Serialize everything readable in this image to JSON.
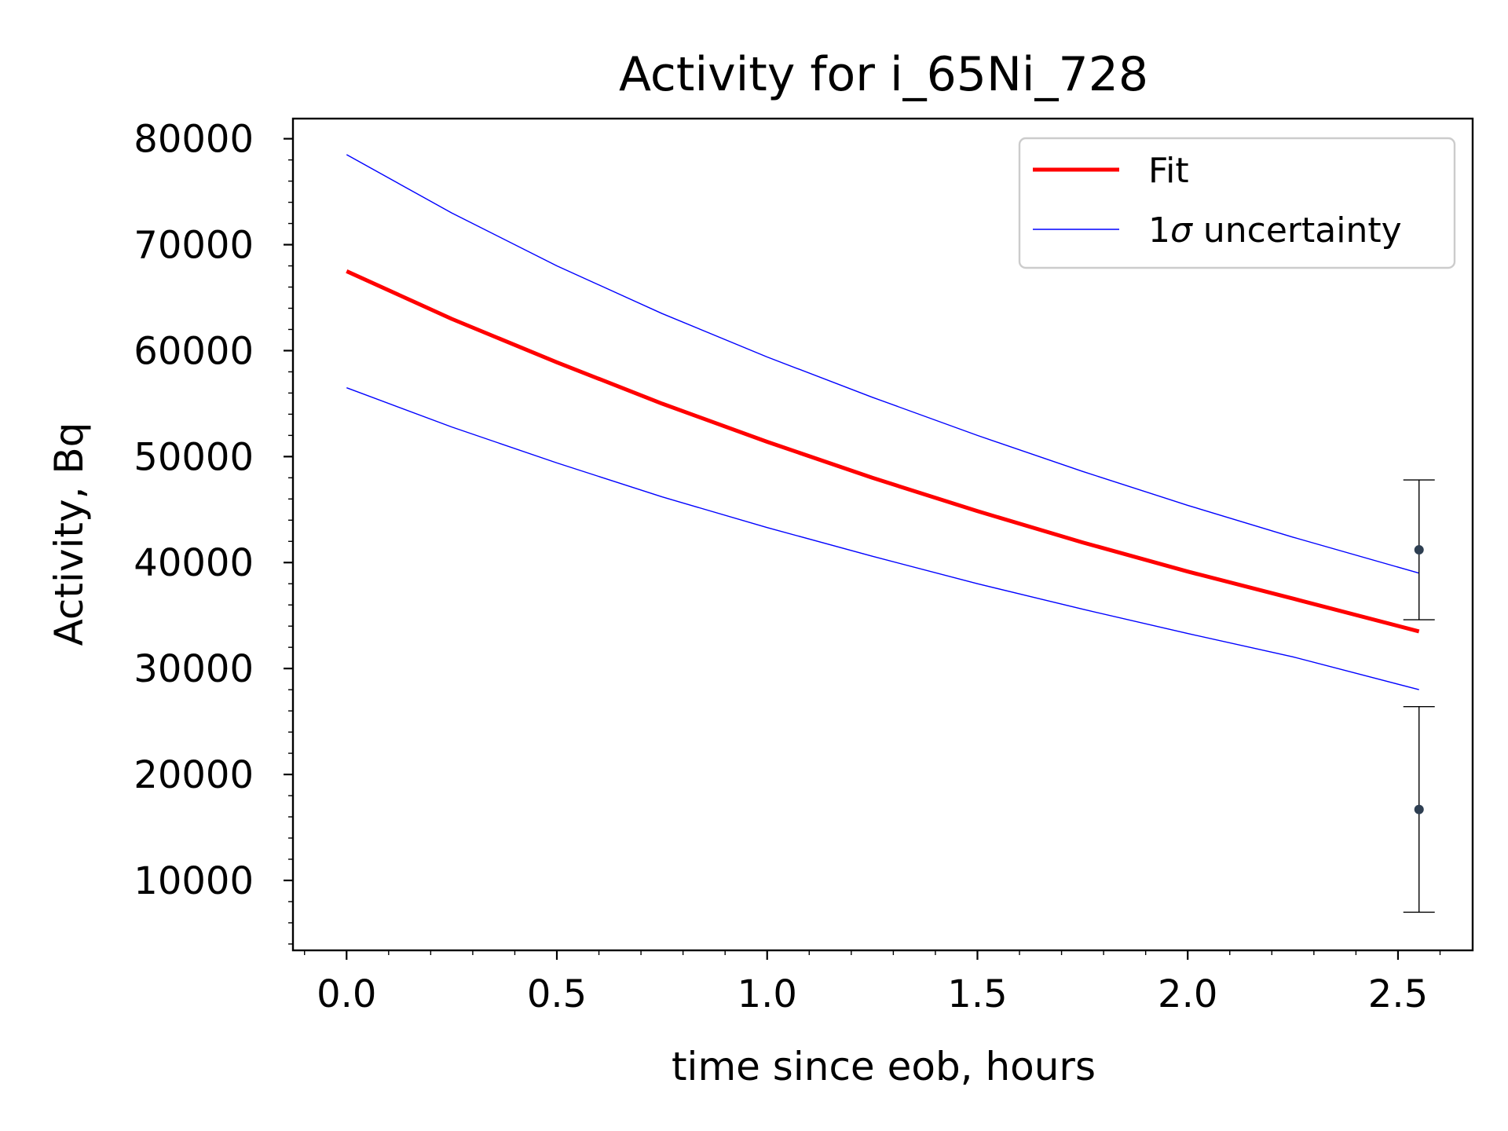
{
  "chart_data": {
    "type": "line",
    "title": "Activity for i_65Ni_728",
    "xlabel": "time since eob, hours",
    "ylabel": "Activity, Bq",
    "xlim": [
      -0.1275,
      2.6775
    ],
    "ylim": [
      3400,
      81900
    ],
    "xticks": [
      0.0,
      0.5,
      1.0,
      1.5,
      2.0,
      2.5
    ],
    "xtick_labels": [
      "0.0",
      "0.5",
      "1.0",
      "1.5",
      "2.0",
      "2.5"
    ],
    "yticks": [
      10000,
      20000,
      30000,
      40000,
      50000,
      60000,
      70000,
      80000
    ],
    "ytick_labels": [
      "10000",
      "20000",
      "30000",
      "40000",
      "50000",
      "60000",
      "70000",
      "80000"
    ],
    "grid": false,
    "legend_position": "top-right",
    "series": [
      {
        "name": "Fit",
        "color": "#ff0000",
        "x": [
          0.0,
          0.25,
          0.5,
          0.75,
          1.0,
          1.25,
          1.5,
          1.75,
          2.0,
          2.25,
          2.55
        ],
        "values": [
          67500,
          63000,
          58900,
          55000,
          51400,
          48000,
          44850,
          41900,
          39150,
          36600,
          33500
        ]
      },
      {
        "name": "1σ uncertainty",
        "color": "#0000ff",
        "x": [
          0.0,
          0.25,
          0.5,
          0.75,
          1.0,
          1.25,
          1.5,
          1.75,
          2.0,
          2.25,
          2.55
        ],
        "values": [
          78500,
          73000,
          68000,
          63500,
          59400,
          55600,
          52000,
          48600,
          45400,
          42400,
          39000
        ]
      },
      {
        "name": "1σ uncertainty (lower)",
        "color": "#0000ff",
        "x": [
          0.0,
          0.25,
          0.5,
          0.75,
          1.0,
          1.25,
          1.5,
          1.75,
          2.0,
          2.25,
          2.55
        ],
        "values": [
          56500,
          52800,
          49400,
          46200,
          43300,
          40600,
          38000,
          35600,
          33300,
          31100,
          28000
        ]
      }
    ],
    "data_points": [
      {
        "x": 2.55,
        "y": 41200,
        "yerr_low": 34600,
        "yerr_high": 47800
      },
      {
        "x": 2.55,
        "y": 16700,
        "yerr_low": 7000,
        "yerr_high": 26400
      }
    ],
    "point_color": "#2e3f52"
  },
  "legend": {
    "fit_label": "Fit",
    "uncertainty_label_prefix": "1",
    "uncertainty_label_sigma": "σ",
    "uncertainty_label_suffix": " uncertainty"
  }
}
